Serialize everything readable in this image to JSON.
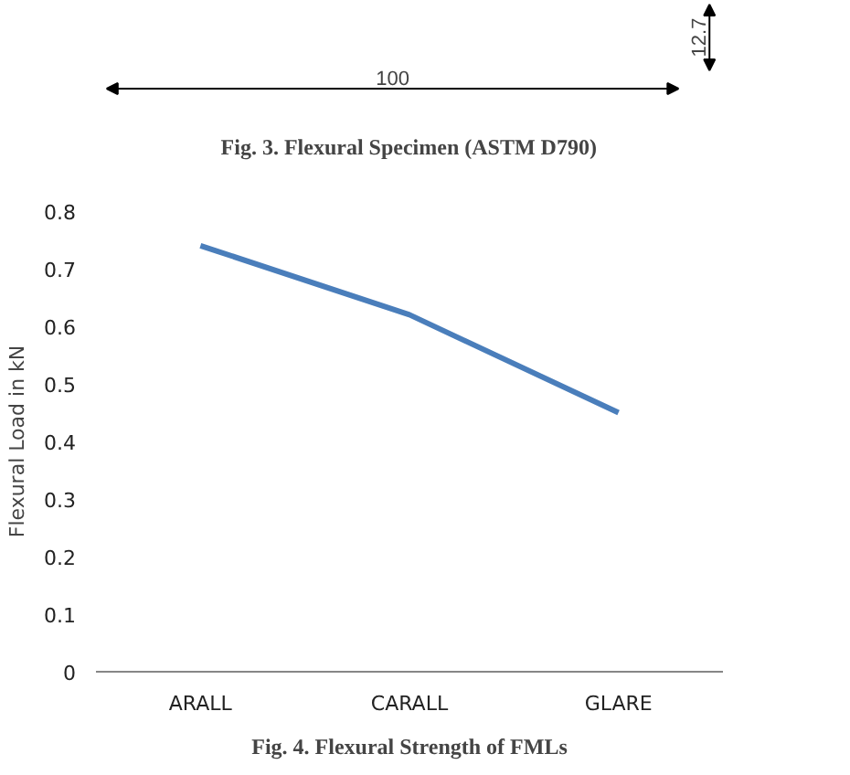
{
  "chart_data": {
    "type": "line",
    "title": "Fig. 4. Flexural Strength of FMLs",
    "ylabel": "Flexural Load in kN",
    "categories": [
      "ARALL",
      "CARALL",
      "GLARE"
    ],
    "series": [
      {
        "color": "#4a7ebb",
        "values": [
          0.74,
          0.62,
          0.45
        ]
      }
    ],
    "ylim": [
      0,
      0.8
    ],
    "yticks": [
      0,
      0.1,
      0.2,
      0.3,
      0.4,
      0.5,
      0.6,
      0.7,
      0.8
    ],
    "grid": false,
    "marker": "none",
    "line_style": "solid",
    "annotations": [
      "12.7",
      "100",
      "Fig. 3. Flexural Specimen (ASTM D790)"
    ]
  }
}
